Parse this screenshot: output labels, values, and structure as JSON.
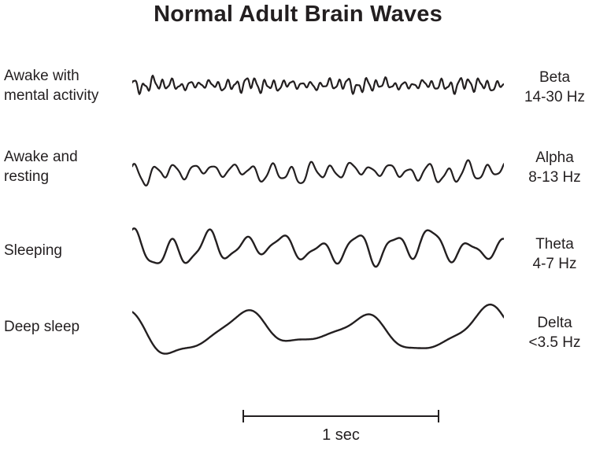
{
  "title": "Normal Adult Brain Waves",
  "rows": [
    {
      "condition_line1": "Awake with",
      "condition_line2": "mental activity",
      "wave_name": "Beta",
      "frequency": "14-30 Hz"
    },
    {
      "condition_line1": "Awake and",
      "condition_line2": "resting",
      "wave_name": "Alpha",
      "frequency": "8-13 Hz"
    },
    {
      "condition_line1": "Sleeping",
      "condition_line2": "",
      "wave_name": "Theta",
      "frequency": "4-7 Hz"
    },
    {
      "condition_line1": "Deep sleep",
      "condition_line2": "",
      "wave_name": "Delta",
      "frequency": "<3.5 Hz"
    }
  ],
  "scale_bar": {
    "label": "1 sec",
    "seconds": 1
  },
  "colors": {
    "ink": "#231f20",
    "background": "#ffffff"
  },
  "chart_data": {
    "type": "line",
    "description": "Four EEG traces of normal adult brain waves; amplitude grows and frequency falls from Beta (top) to Delta (bottom). Horizontal scale bar equals 1 second (about 250 px).",
    "time_scale_seconds": 1,
    "waves": [
      {
        "name": "Beta",
        "condition": "Awake with mental activity",
        "frequency_hz": "14-30",
        "cycles": 40,
        "amplitude": 5,
        "stroke": 2.2,
        "mod": [
          3.5,
          0.35,
          0.8
        ],
        "components": [
          [
            1,
            1,
            0
          ],
          [
            1.83,
            0.35,
            2.1
          ],
          [
            0.48,
            0.45,
            1.1
          ],
          [
            0.21,
            0.3,
            3.9
          ]
        ]
      },
      {
        "name": "Alpha",
        "condition": "Awake and resting",
        "frequency_hz": "8-13",
        "cycles": 19,
        "amplitude": 8,
        "stroke": 2.2,
        "mod": [
          2.3,
          0.3,
          1.5
        ],
        "components": [
          [
            1,
            1,
            0.6
          ],
          [
            0.52,
            0.4,
            2.3
          ],
          [
            2.1,
            0.18,
            0.7
          ],
          [
            0.13,
            0.35,
            4.5
          ]
        ]
      },
      {
        "name": "Theta",
        "condition": "Sleeping",
        "frequency_hz": "4-7",
        "cycles": 10,
        "amplitude": 14,
        "stroke": 2.4,
        "mod": [
          1.7,
          0.25,
          0.4
        ],
        "components": [
          [
            1,
            1,
            1.2
          ],
          [
            0.5,
            0.35,
            1.8
          ],
          [
            1.93,
            0.28,
            0.9
          ],
          [
            0.23,
            0.3,
            3.1
          ]
        ]
      },
      {
        "name": "Delta",
        "condition": "Deep sleep",
        "frequency_hz": "<3.5",
        "cycles": 3.05,
        "amplitude": 21,
        "stroke": 2.4,
        "mod": [
          0.8,
          0.15,
          2.0
        ],
        "components": [
          [
            1,
            1,
            2.2
          ],
          [
            2.02,
            0.3,
            1.9
          ],
          [
            0.52,
            0.25,
            3.6
          ],
          [
            3.1,
            0.12,
            0.8
          ]
        ]
      }
    ]
  }
}
